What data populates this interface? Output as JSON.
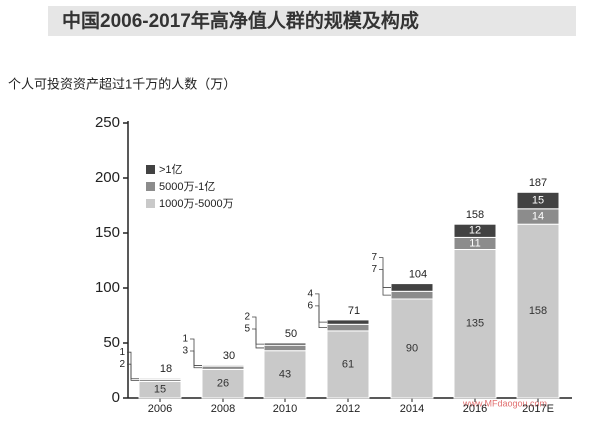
{
  "chart_data": {
    "type": "stacked_bar",
    "title": "中国2006-2017年高净值人群的规模及构成",
    "subtitle": "个人可投资资产超过1千万的人数（万）",
    "categories": [
      "2006",
      "2008",
      "2010",
      "2012",
      "2014",
      "2016",
      "2017E"
    ],
    "series": [
      {
        "name": "1000万-5000万",
        "color": "#c9c9c9",
        "values": [
          15,
          26,
          43,
          61,
          90,
          135,
          158
        ]
      },
      {
        "name": "5000万-1亿",
        "color": "#8c8c8c",
        "values": [
          2,
          3,
          5,
          6,
          7,
          11,
          14
        ]
      },
      {
        "name": ">1亿",
        "color": "#424242",
        "values": [
          1,
          1,
          2,
          4,
          7,
          12,
          15
        ]
      }
    ],
    "totals": [
      18,
      30,
      50,
      71,
      104,
      158,
      187
    ],
    "ylim": [
      0,
      250
    ],
    "yticks": [
      0,
      50,
      100,
      150,
      200,
      250
    ],
    "watermark": "www.MFdaogou.com"
  }
}
